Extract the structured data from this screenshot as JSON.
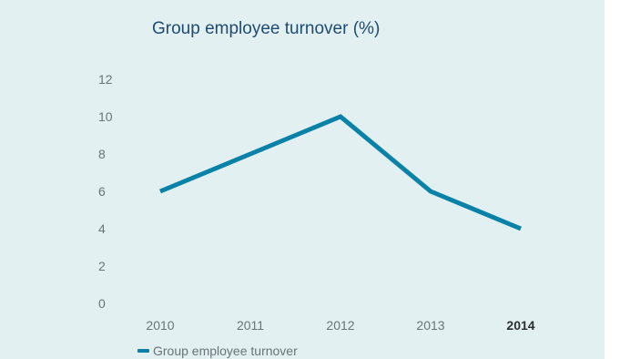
{
  "chart_data": {
    "type": "line",
    "title": "Group employee turnover (%)",
    "xlabel": "",
    "ylabel": "",
    "x": [
      "2010",
      "2011",
      "2012",
      "2013",
      "2014"
    ],
    "highlighted_x": "2014",
    "series": [
      {
        "name": "Group employee turnover",
        "values": [
          6,
          8,
          10,
          6,
          4
        ],
        "color": "#0a82a8"
      }
    ],
    "ylim": [
      0,
      12
    ],
    "yticks": [
      0,
      2,
      4,
      6,
      8,
      10,
      12
    ],
    "grid": false,
    "legend_position": "bottom-left"
  },
  "colors": {
    "background": "#e2f0f1",
    "title": "#1e4b73",
    "line": "#0a82a8"
  }
}
